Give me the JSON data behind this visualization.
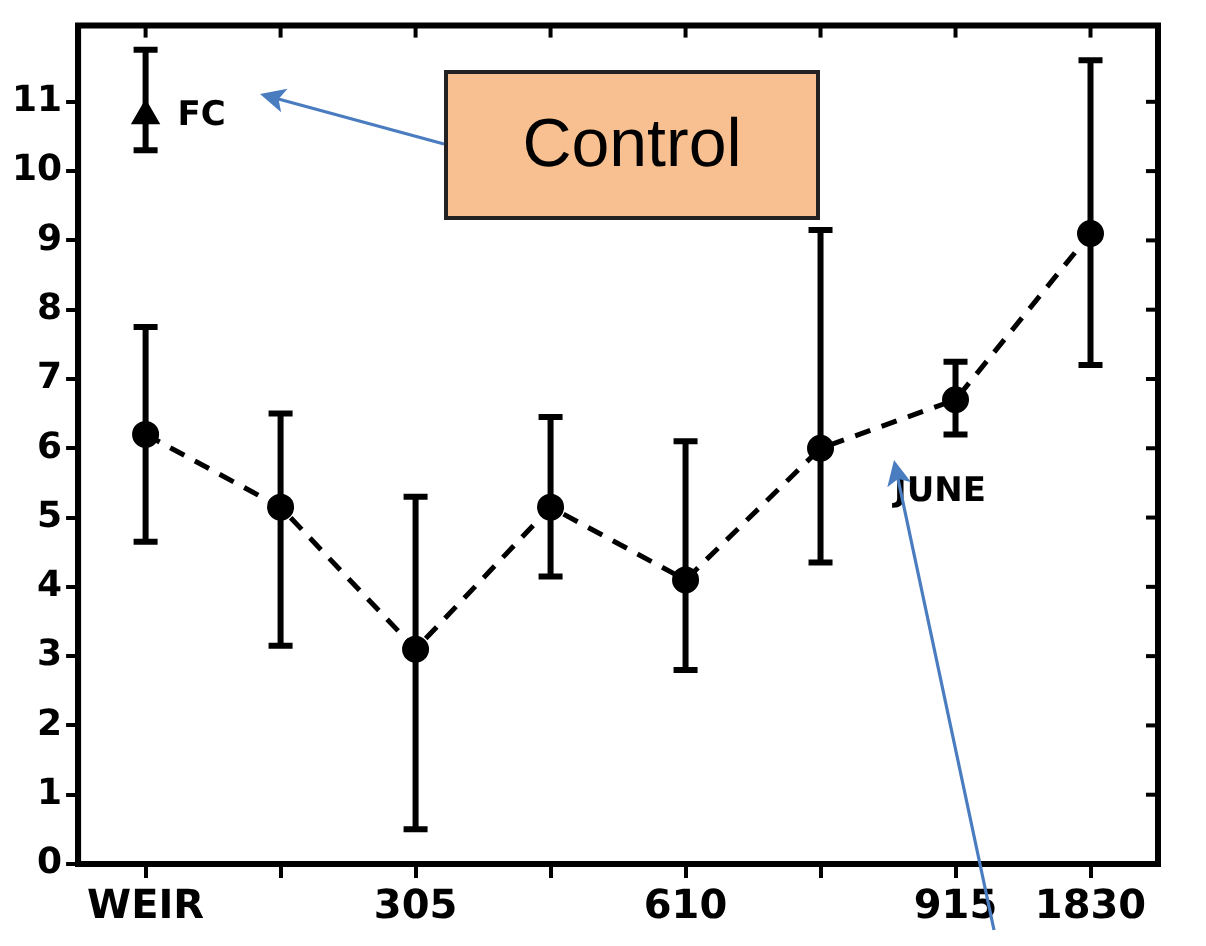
{
  "chart_data": {
    "type": "line",
    "categories": [
      "WEIR",
      null,
      "305",
      null,
      "610",
      null,
      "915",
      "1830"
    ],
    "series": [
      {
        "name": "JUNE",
        "color": "#000000",
        "marker": "circle",
        "line_style": "dashed",
        "values": [
          6.2,
          5.15,
          3.1,
          5.15,
          4.1,
          6.0,
          6.7,
          9.1
        ],
        "errors": [
          [
            4.65,
            7.75
          ],
          [
            3.15,
            6.5
          ],
          [
            0.5,
            5.3
          ],
          [
            4.15,
            6.45
          ],
          [
            2.8,
            6.1
          ],
          [
            4.35,
            9.15
          ],
          [
            6.2,
            7.25
          ],
          [
            7.2,
            11.6
          ]
        ]
      },
      {
        "name": "FC",
        "color": "#000000",
        "type": "scatter",
        "marker": "triangle",
        "values": [
          10.8,
          null,
          null,
          null,
          null,
          null,
          null,
          null
        ],
        "errors": [
          [
            10.3,
            11.75
          ],
          null,
          null,
          null,
          null,
          null,
          null,
          null
        ]
      }
    ],
    "ylim": [
      0,
      12.1
    ],
    "yticks": [
      0,
      1,
      2,
      3,
      4,
      5,
      6,
      7,
      8,
      9,
      10,
      11
    ],
    "grid": false,
    "legend": false,
    "annotations": [
      "Control"
    ]
  }
}
